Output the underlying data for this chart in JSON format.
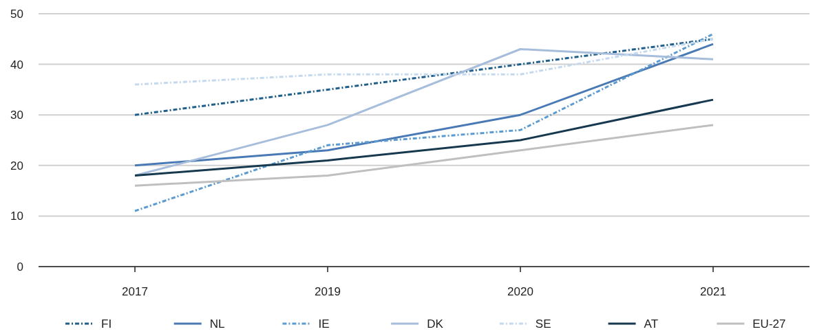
{
  "chart_data": {
    "type": "line",
    "categories": [
      "2017",
      "2019",
      "2020",
      "2021"
    ],
    "ylim": [
      0,
      50
    ],
    "yticks": [
      0,
      10,
      20,
      30,
      40,
      50
    ],
    "grid": "y",
    "legend": "bottom",
    "marker": "none",
    "series": [
      {
        "name": "FI",
        "color": "#1f5f8b",
        "line_style": "dashed",
        "values": [
          30,
          35,
          40,
          45
        ]
      },
      {
        "name": "NL",
        "color": "#4a7ab5",
        "line_style": "solid",
        "values": [
          20,
          23,
          30,
          44
        ]
      },
      {
        "name": "IE",
        "color": "#5b9bd0",
        "line_style": "dashed",
        "values": [
          11,
          24,
          27,
          46
        ]
      },
      {
        "name": "DK",
        "color": "#a6bddb",
        "line_style": "solid",
        "values": [
          18,
          28,
          43,
          41
        ]
      },
      {
        "name": "SE",
        "color": "#c5d9ee",
        "line_style": "dashed",
        "values": [
          36,
          38,
          38,
          45
        ]
      },
      {
        "name": "AT",
        "color": "#16394f",
        "line_style": "solid",
        "values": [
          18,
          21,
          25,
          33
        ]
      },
      {
        "name": "EU-27",
        "color": "#bfbfbf",
        "line_style": "solid",
        "values": [
          16,
          18,
          23,
          28
        ]
      }
    ]
  }
}
